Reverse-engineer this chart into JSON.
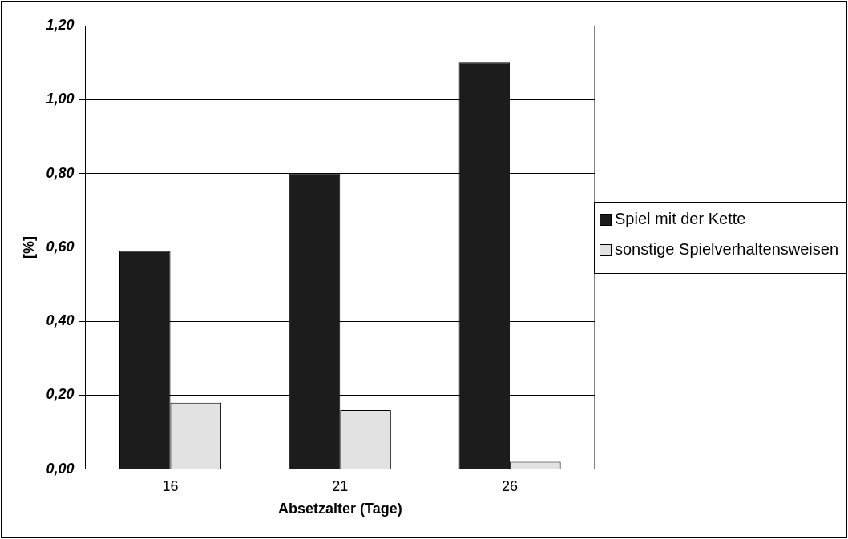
{
  "chart_data": {
    "type": "bar",
    "xlabel": "Absetzalter (Tage)",
    "ylabel": "[%]",
    "categories": [
      "16",
      "21",
      "26"
    ],
    "series": [
      {
        "name": "Spiel mit der Kette",
        "color": "#1c1c1c",
        "values": [
          0.59,
          0.8,
          1.1
        ]
      },
      {
        "name": "sonstige Spielverhaltensweisen",
        "color": "#e2e2e2",
        "values": [
          0.18,
          0.16,
          0.02
        ]
      }
    ],
    "ylim": [
      0,
      1.2
    ],
    "yticks": [
      {
        "value": 0,
        "label": "0,00"
      },
      {
        "value": 0.2,
        "label": "0,20"
      },
      {
        "value": 0.4,
        "label": "0,40"
      },
      {
        "value": 0.6,
        "label": "0,60"
      },
      {
        "value": 0.8,
        "label": "0,80"
      },
      {
        "value": 1.0,
        "label": "1,00"
      },
      {
        "value": 1.2,
        "label": "1,20"
      }
    ],
    "grid": "y",
    "legend": "right"
  }
}
